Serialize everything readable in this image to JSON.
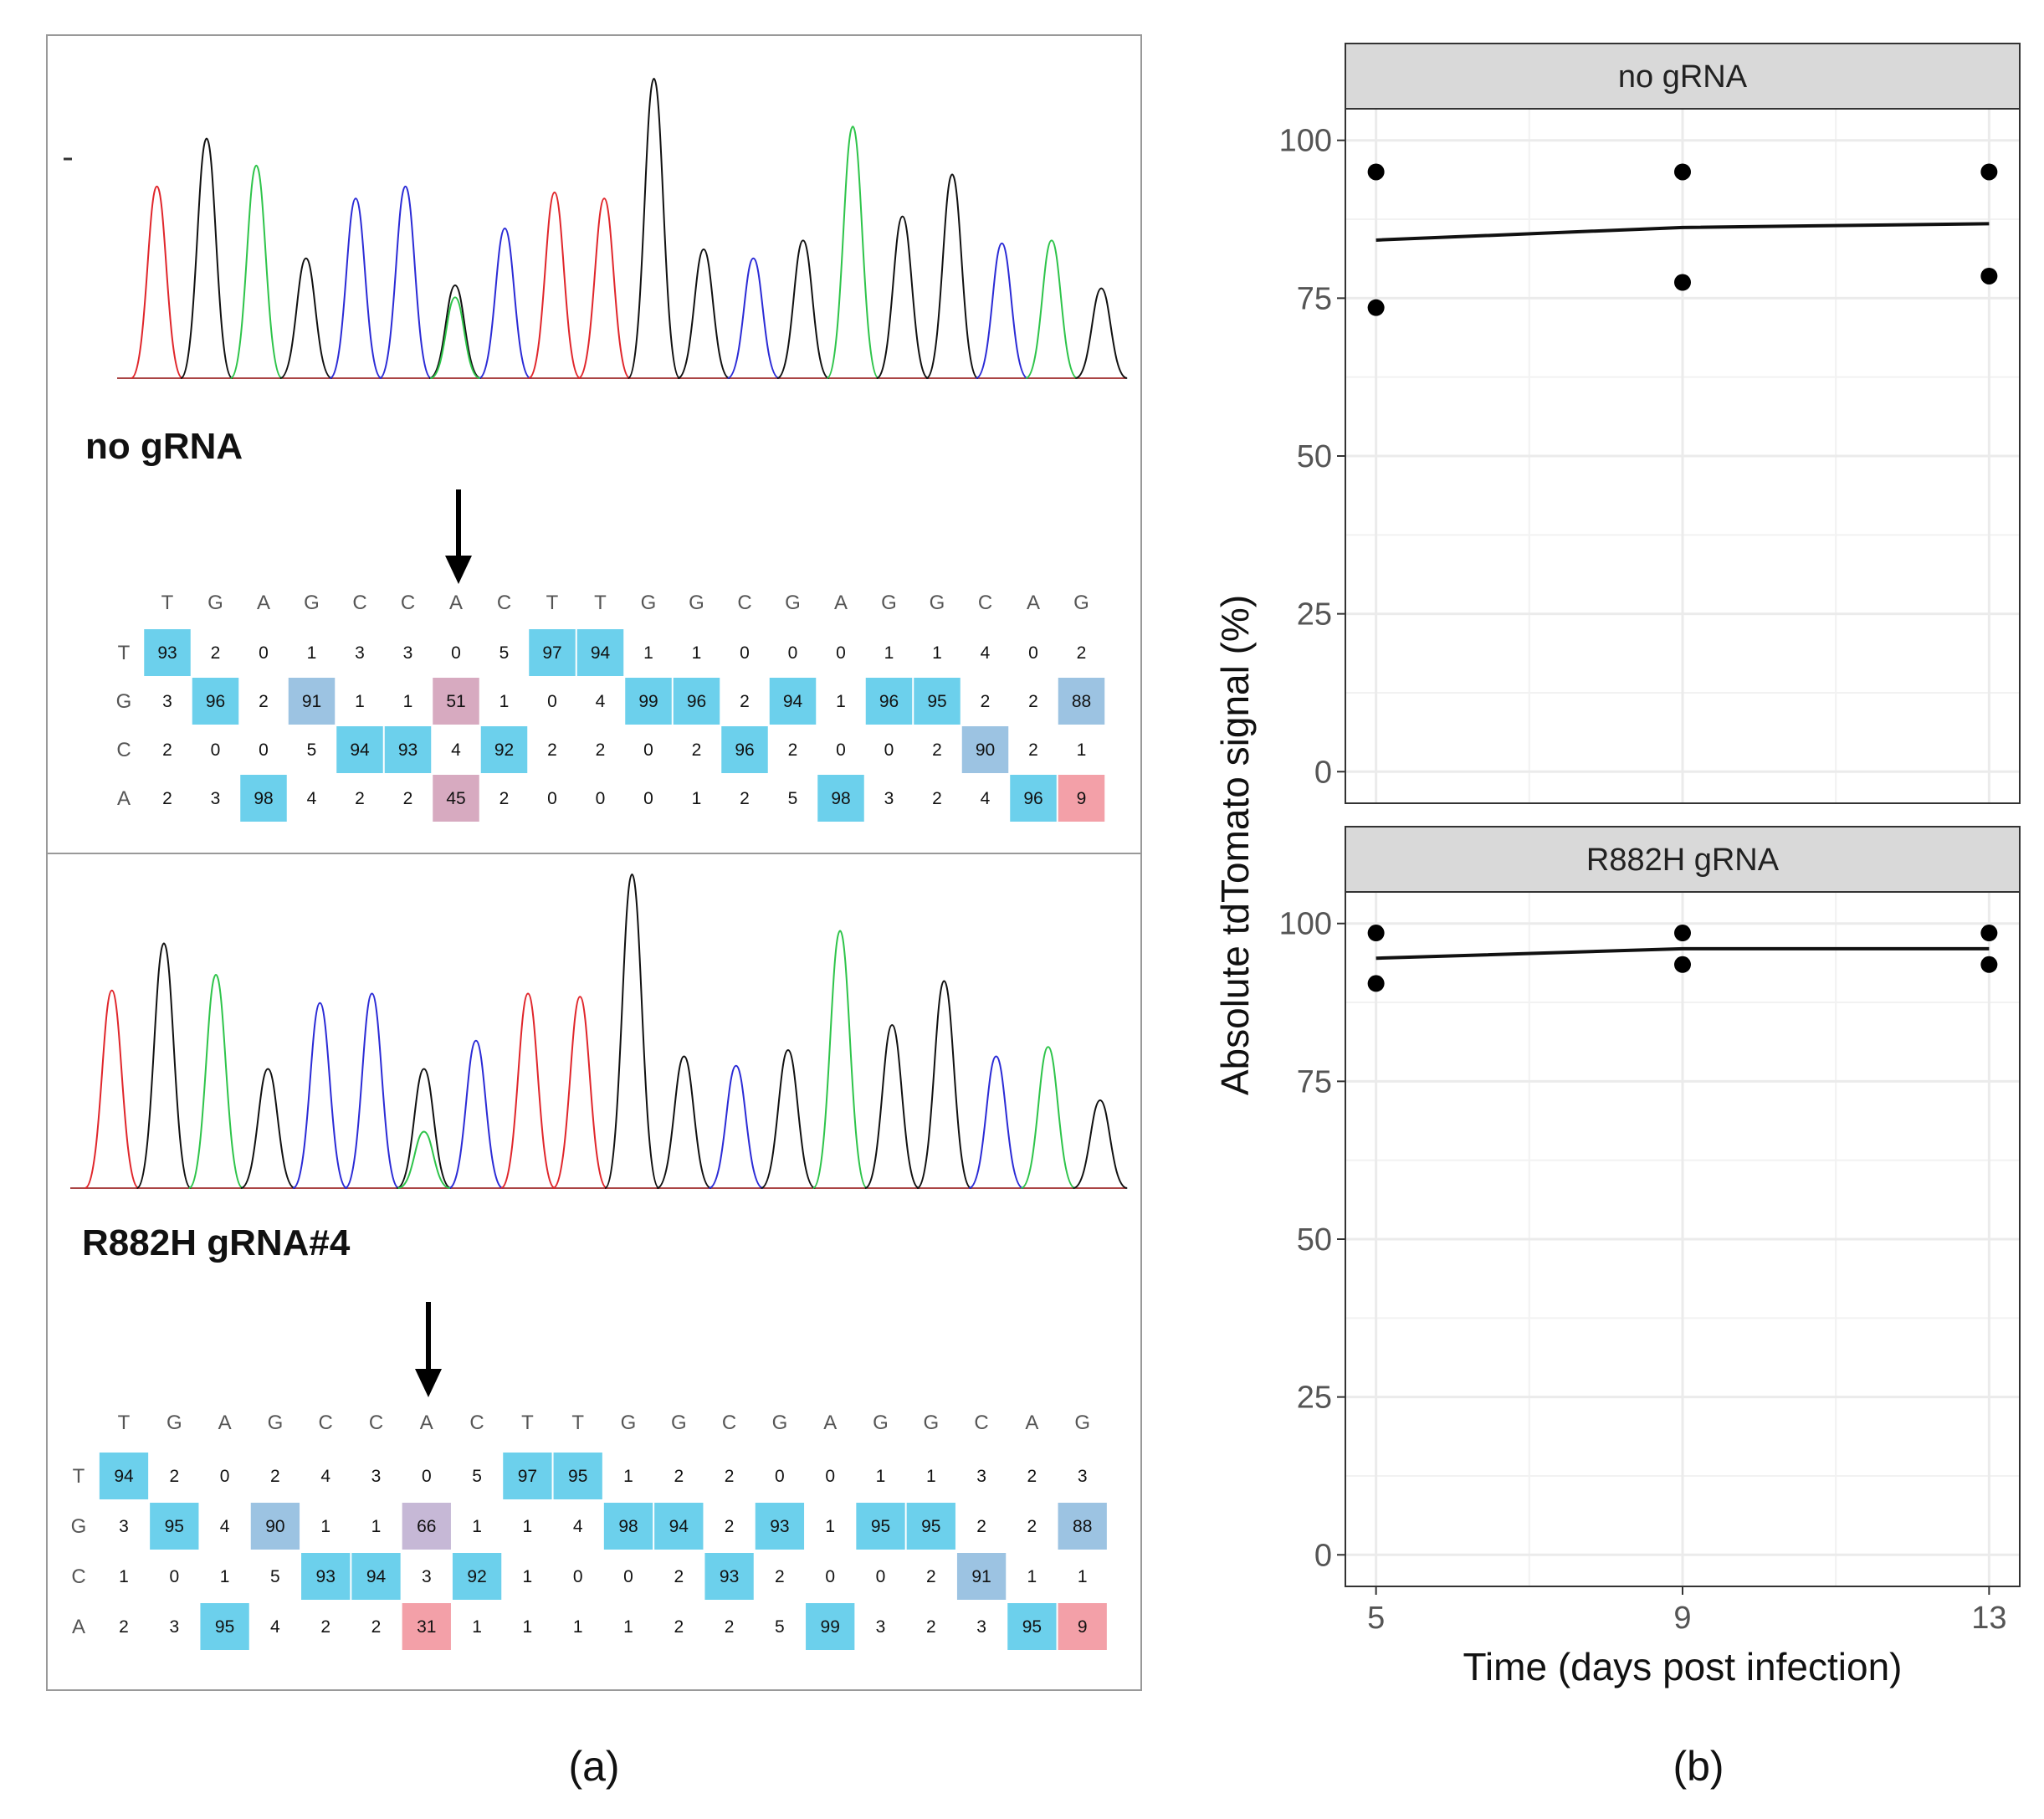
{
  "colors": {
    "A": "#2ec44a",
    "C": "#2b2bd6",
    "G": "#111111",
    "T": "#e0262b",
    "strong": "#6cd0ec",
    "mid": "#9cc3e2",
    "pink": "#d7aac0",
    "red": "#f3a0a8",
    "purple": "#c6b8d6",
    "strip_bg": "#d9d9d9",
    "grid": "#ebebeb"
  },
  "panel_a": {
    "caption": "(a)",
    "samples": [
      {
        "label": "no gRNA",
        "sequence": [
          "T",
          "G",
          "A",
          "G",
          "C",
          "C",
          "A",
          "C",
          "T",
          "T",
          "G",
          "G",
          "C",
          "G",
          "A",
          "G",
          "G",
          "C",
          "A",
          "G"
        ],
        "chromatogram": [
          {
            "base": "T",
            "h": 0.64
          },
          {
            "base": "G",
            "h": 0.8
          },
          {
            "base": "A",
            "h": 0.71
          },
          {
            "base": "G",
            "h": 0.4
          },
          {
            "base": "C",
            "h": 0.6
          },
          {
            "base": "C",
            "h": 0.64
          },
          {
            "base": "G",
            "h": 0.31
          },
          {
            "base": "C",
            "h": 0.5
          },
          {
            "base": "T",
            "h": 0.62
          },
          {
            "base": "T",
            "h": 0.6
          },
          {
            "base": "G",
            "h": 1.0
          },
          {
            "base": "G",
            "h": 0.43
          },
          {
            "base": "C",
            "h": 0.4
          },
          {
            "base": "G",
            "h": 0.46
          },
          {
            "base": "A",
            "h": 0.84
          },
          {
            "base": "G",
            "h": 0.54
          },
          {
            "base": "G",
            "h": 0.68
          },
          {
            "base": "C",
            "h": 0.45
          },
          {
            "base": "A",
            "h": 0.46
          },
          {
            "base": "G",
            "h": 0.3
          }
        ],
        "secondary_peak": {
          "position": 7,
          "base": "A",
          "h": 0.27
        },
        "rows": [
          {
            "base": "T",
            "values": [
              93,
              2,
              0,
              1,
              3,
              3,
              0,
              5,
              97,
              94,
              1,
              1,
              0,
              0,
              0,
              1,
              1,
              4,
              0,
              2
            ]
          },
          {
            "base": "G",
            "values": [
              3,
              96,
              2,
              91,
              1,
              1,
              51,
              1,
              0,
              4,
              99,
              96,
              2,
              94,
              1,
              96,
              95,
              2,
              2,
              88
            ]
          },
          {
            "base": "C",
            "values": [
              2,
              0,
              0,
              5,
              94,
              93,
              4,
              92,
              2,
              2,
              0,
              2,
              96,
              2,
              0,
              0,
              2,
              90,
              2,
              1
            ]
          },
          {
            "base": "A",
            "values": [
              2,
              3,
              98,
              4,
              2,
              2,
              45,
              2,
              0,
              0,
              0,
              1,
              2,
              5,
              98,
              3,
              2,
              4,
              96,
              9
            ]
          }
        ]
      },
      {
        "label": "R882H gRNA#4",
        "sequence": [
          "T",
          "G",
          "A",
          "G",
          "C",
          "C",
          "A",
          "C",
          "T",
          "T",
          "G",
          "G",
          "C",
          "G",
          "A",
          "G",
          "G",
          "C",
          "A",
          "G"
        ],
        "chromatogram": [
          {
            "base": "T",
            "h": 0.63
          },
          {
            "base": "G",
            "h": 0.78
          },
          {
            "base": "A",
            "h": 0.68
          },
          {
            "base": "G",
            "h": 0.38
          },
          {
            "base": "C",
            "h": 0.59
          },
          {
            "base": "C",
            "h": 0.62
          },
          {
            "base": "G",
            "h": 0.38
          },
          {
            "base": "C",
            "h": 0.47
          },
          {
            "base": "T",
            "h": 0.62
          },
          {
            "base": "T",
            "h": 0.61
          },
          {
            "base": "G",
            "h": 1.0
          },
          {
            "base": "G",
            "h": 0.42
          },
          {
            "base": "C",
            "h": 0.39
          },
          {
            "base": "G",
            "h": 0.44
          },
          {
            "base": "A",
            "h": 0.82
          },
          {
            "base": "G",
            "h": 0.52
          },
          {
            "base": "G",
            "h": 0.66
          },
          {
            "base": "C",
            "h": 0.42
          },
          {
            "base": "A",
            "h": 0.45
          },
          {
            "base": "G",
            "h": 0.28
          }
        ],
        "secondary_peak": {
          "position": 7,
          "base": "A",
          "h": 0.18
        },
        "rows": [
          {
            "base": "T",
            "values": [
              94,
              2,
              0,
              2,
              4,
              3,
              0,
              5,
              97,
              95,
              1,
              2,
              2,
              0,
              0,
              1,
              1,
              3,
              2,
              3
            ]
          },
          {
            "base": "G",
            "values": [
              3,
              95,
              4,
              90,
              1,
              1,
              66,
              1,
              1,
              4,
              98,
              94,
              2,
              93,
              1,
              95,
              95,
              2,
              2,
              88
            ]
          },
          {
            "base": "C",
            "values": [
              1,
              0,
              1,
              5,
              93,
              94,
              3,
              92,
              1,
              0,
              0,
              2,
              93,
              2,
              0,
              0,
              2,
              91,
              1,
              1
            ]
          },
          {
            "base": "A",
            "values": [
              2,
              3,
              95,
              4,
              2,
              2,
              31,
              1,
              1,
              1,
              1,
              2,
              2,
              5,
              99,
              3,
              2,
              3,
              95,
              9
            ]
          }
        ]
      }
    ]
  },
  "panel_b": {
    "caption": "(b)",
    "chart_data": {
      "type": "scatter",
      "title": "",
      "xlabel": "Time (days post infection)",
      "ylabel": "Absolute tdTomato signal (%)",
      "x_ticks": [
        5,
        9,
        13
      ],
      "y_ticks": [
        0,
        25,
        50,
        75,
        100
      ],
      "xlim": [
        4.6,
        13.4
      ],
      "ylim": [
        -5,
        105
      ],
      "facets": [
        {
          "name": "no gRNA",
          "points": [
            {
              "x": 5,
              "y": 95
            },
            {
              "x": 5,
              "y": 73.5
            },
            {
              "x": 9,
              "y": 95
            },
            {
              "x": 9,
              "y": 77.5
            },
            {
              "x": 13,
              "y": 95
            },
            {
              "x": 13,
              "y": 78.5
            }
          ],
          "line": [
            {
              "x": 5,
              "y": 84.2
            },
            {
              "x": 9,
              "y": 86.2
            },
            {
              "x": 13,
              "y": 86.8
            }
          ]
        },
        {
          "name": "R882H gRNA",
          "points": [
            {
              "x": 5,
              "y": 98.5
            },
            {
              "x": 5,
              "y": 90.5
            },
            {
              "x": 9,
              "y": 98.5
            },
            {
              "x": 9,
              "y": 93.5
            },
            {
              "x": 13,
              "y": 98.5
            },
            {
              "x": 13,
              "y": 93.5
            }
          ],
          "line": [
            {
              "x": 5,
              "y": 94.5
            },
            {
              "x": 9,
              "y": 96
            },
            {
              "x": 13,
              "y": 96
            }
          ]
        }
      ]
    }
  }
}
